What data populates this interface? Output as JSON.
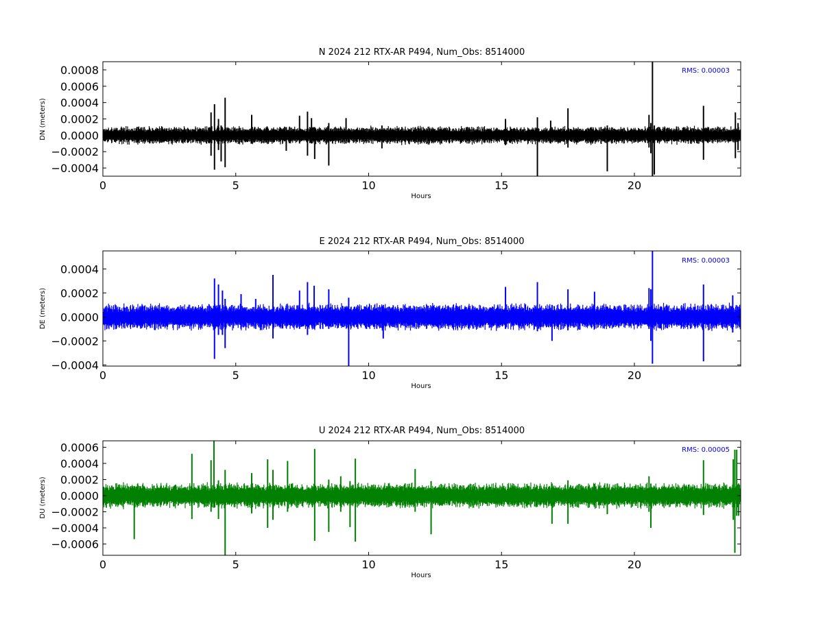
{
  "chart_data": [
    {
      "type": "line",
      "title": "N 2024 212 RTX-AR  P494, Num_Obs: 8514000",
      "xlabel": "Hours",
      "ylabel": "DN (meters)",
      "xlim": [
        0,
        24
      ],
      "ylim": [
        -0.0005,
        0.0009
      ],
      "xticks": [
        0,
        5,
        10,
        15,
        20
      ],
      "xtick_labels": [
        "0",
        "5",
        "10",
        "15",
        "20"
      ],
      "yticks": [
        -0.0004,
        -0.0002,
        0.0,
        0.0002,
        0.0004,
        0.0006,
        0.0008
      ],
      "ytick_labels": [
        "−0.0004",
        "−0.0002",
        "0.0000",
        "0.0002",
        "0.0004",
        "0.0006",
        "0.0008"
      ],
      "color": "#000000",
      "annotation": "RMS:  0.00003",
      "annotation_color": "#0000ff",
      "noise_band": [
        -0.00012,
        0.00012
      ],
      "spikes": [
        {
          "x": 4.07,
          "lo": -0.00025,
          "hi": 0.00028
        },
        {
          "x": 4.2,
          "lo": -0.00042,
          "hi": 0.00038
        },
        {
          "x": 4.35,
          "lo": -0.00018,
          "hi": 0.0002
        },
        {
          "x": 4.45,
          "lo": -0.00032,
          "hi": 0.00012
        },
        {
          "x": 4.6,
          "lo": -0.00039,
          "hi": 0.00046
        },
        {
          "x": 5.6,
          "lo": -0.0001,
          "hi": 0.00025
        },
        {
          "x": 6.9,
          "lo": -0.00019,
          "hi": 0.0001
        },
        {
          "x": 7.4,
          "lo": -0.0001,
          "hi": 0.00024
        },
        {
          "x": 7.7,
          "lo": -0.00025,
          "hi": 0.00029
        },
        {
          "x": 7.85,
          "lo": -0.0001,
          "hi": 0.00021
        },
        {
          "x": 7.97,
          "lo": -0.00029,
          "hi": 0.0001
        },
        {
          "x": 8.5,
          "lo": -0.00037,
          "hi": 0.00015
        },
        {
          "x": 9.15,
          "lo": -0.0001,
          "hi": 0.00021
        },
        {
          "x": 10.5,
          "lo": -0.00016,
          "hi": 0.00012
        },
        {
          "x": 15.15,
          "lo": -0.00012,
          "hi": 0.0002
        },
        {
          "x": 16.35,
          "lo": -0.0005,
          "hi": 0.00022
        },
        {
          "x": 16.85,
          "lo": -0.0001,
          "hi": 0.00018
        },
        {
          "x": 17.5,
          "lo": -0.00015,
          "hi": 0.00033
        },
        {
          "x": 18.98,
          "lo": -0.00044,
          "hi": 0.00012
        },
        {
          "x": 20.55,
          "lo": -0.00015,
          "hi": 0.00025
        },
        {
          "x": 20.62,
          "lo": -0.00022,
          "hi": 0.00015
        },
        {
          "x": 20.68,
          "lo": -0.0005,
          "hi": 0.0009
        },
        {
          "x": 20.75,
          "lo": -0.00048,
          "hi": 0.00012
        },
        {
          "x": 22.6,
          "lo": -0.0003,
          "hi": 0.00036
        },
        {
          "x": 23.8,
          "lo": -0.00028,
          "hi": 0.00028
        },
        {
          "x": 23.9,
          "lo": -0.00018,
          "hi": 0.00015
        }
      ]
    },
    {
      "type": "line",
      "title": "E 2024 212 RTX-AR  P494, Num_Obs: 8514000",
      "xlabel": "Hours",
      "ylabel": "DE (meters)",
      "xlim": [
        0,
        24
      ],
      "ylim": [
        -0.00041,
        0.00055
      ],
      "xticks": [
        0,
        5,
        10,
        15,
        20
      ],
      "xtick_labels": [
        "0",
        "5",
        "10",
        "15",
        "20"
      ],
      "yticks": [
        -0.0004,
        -0.0002,
        0.0,
        0.0002,
        0.0004
      ],
      "ytick_labels": [
        "−0.0004",
        "−0.0002",
        "0.0000",
        "0.0002",
        "0.0004"
      ],
      "color": "#0000ff",
      "annotation": "RMS:  0.00003",
      "annotation_color": "#0000ff",
      "noise_band": [
        -0.00012,
        0.00012
      ],
      "spikes": [
        {
          "x": 4.2,
          "lo": -0.00035,
          "hi": 0.00032
        },
        {
          "x": 4.35,
          "lo": -0.00015,
          "hi": 0.00027
        },
        {
          "x": 4.5,
          "lo": -0.00015,
          "hi": 0.00022
        },
        {
          "x": 4.6,
          "lo": -0.00026,
          "hi": 0.00015
        },
        {
          "x": 5.2,
          "lo": -0.0001,
          "hi": 0.00019
        },
        {
          "x": 5.75,
          "lo": -0.0001,
          "hi": 0.00015
        },
        {
          "x": 6.4,
          "lo": -0.00018,
          "hi": 0.00035
        },
        {
          "x": 7.4,
          "lo": -0.0001,
          "hi": 0.00022
        },
        {
          "x": 7.7,
          "lo": -0.00015,
          "hi": 0.00029
        },
        {
          "x": 7.95,
          "lo": -0.0001,
          "hi": 0.00026
        },
        {
          "x": 8.5,
          "lo": -0.0001,
          "hi": 0.00023
        },
        {
          "x": 9.25,
          "lo": -0.00041,
          "hi": 0.00016
        },
        {
          "x": 10.55,
          "lo": -0.00018,
          "hi": 0.0001
        },
        {
          "x": 15.15,
          "lo": -0.0001,
          "hi": 0.00025
        },
        {
          "x": 16.35,
          "lo": -0.00012,
          "hi": 0.00029
        },
        {
          "x": 16.9,
          "lo": -0.0002,
          "hi": 0.0001
        },
        {
          "x": 17.5,
          "lo": -0.00011,
          "hi": 0.00023
        },
        {
          "x": 18.5,
          "lo": -0.0001,
          "hi": 0.00021
        },
        {
          "x": 20.55,
          "lo": -0.0001,
          "hi": 0.00024
        },
        {
          "x": 20.62,
          "lo": -0.0002,
          "hi": 0.00023
        },
        {
          "x": 20.68,
          "lo": -0.00039,
          "hi": 0.00055
        },
        {
          "x": 22.6,
          "lo": -0.00037,
          "hi": 0.00027
        },
        {
          "x": 23.7,
          "lo": -0.00013,
          "hi": 0.00018
        }
      ]
    },
    {
      "type": "line",
      "title": "U 2024 212 RTX-AR  P494, Num_Obs: 8514000",
      "xlabel": "Hours",
      "ylabel": "DU (meters)",
      "xlim": [
        0,
        24
      ],
      "ylim": [
        -0.00074,
        0.00068
      ],
      "xticks": [
        0,
        5,
        10,
        15,
        20
      ],
      "xtick_labels": [
        "0",
        "5",
        "10",
        "15",
        "20"
      ],
      "yticks": [
        -0.0006,
        -0.0004,
        -0.0002,
        0.0,
        0.0002,
        0.0004,
        0.0006
      ],
      "ytick_labels": [
        "−0.0006",
        "−0.0004",
        "−0.0002",
        "0.0000",
        "0.0002",
        "0.0004",
        "0.0006"
      ],
      "color": "#008000",
      "annotation": "RMS:  0.00005",
      "annotation_color": "#0000ff",
      "noise_band": [
        -0.00017,
        0.00017
      ],
      "spikes": [
        {
          "x": 1.18,
          "lo": -0.00054,
          "hi": 0.00012
        },
        {
          "x": 3.35,
          "lo": -0.00029,
          "hi": 0.00052
        },
        {
          "x": 4.07,
          "lo": -0.0002,
          "hi": 0.00044
        },
        {
          "x": 4.18,
          "lo": -0.00015,
          "hi": 0.00068
        },
        {
          "x": 4.35,
          "lo": -0.00029,
          "hi": 0.00019
        },
        {
          "x": 4.6,
          "lo": -0.00074,
          "hi": 0.00032
        },
        {
          "x": 5.6,
          "lo": -0.00022,
          "hi": 0.00028
        },
        {
          "x": 6.2,
          "lo": -0.0004,
          "hi": 0.00045
        },
        {
          "x": 6.4,
          "lo": -0.0003,
          "hi": 0.00032
        },
        {
          "x": 6.95,
          "lo": -0.0002,
          "hi": 0.00043
        },
        {
          "x": 7.97,
          "lo": -0.00056,
          "hi": 0.00058
        },
        {
          "x": 8.5,
          "lo": -0.00045,
          "hi": 0.0002
        },
        {
          "x": 8.95,
          "lo": -0.0002,
          "hi": 0.00024
        },
        {
          "x": 9.3,
          "lo": -0.00039,
          "hi": 0.00018
        },
        {
          "x": 9.5,
          "lo": -0.00057,
          "hi": 0.00046
        },
        {
          "x": 11.75,
          "lo": -0.0002,
          "hi": 0.00033
        },
        {
          "x": 12.35,
          "lo": -0.00048,
          "hi": 0.00018
        },
        {
          "x": 16.9,
          "lo": -0.00035,
          "hi": 0.00015
        },
        {
          "x": 17.5,
          "lo": -0.00035,
          "hi": 0.00019
        },
        {
          "x": 18.98,
          "lo": -0.00023,
          "hi": 0.00015
        },
        {
          "x": 20.55,
          "lo": -0.0002,
          "hi": 0.00024
        },
        {
          "x": 20.62,
          "lo": -0.0004,
          "hi": 0.00015
        },
        {
          "x": 22.6,
          "lo": -0.00024,
          "hi": 0.00044
        },
        {
          "x": 23.72,
          "lo": -0.0003,
          "hi": 0.00045
        },
        {
          "x": 23.78,
          "lo": -0.00071,
          "hi": 0.00057
        },
        {
          "x": 23.85,
          "lo": -0.00025,
          "hi": 0.00057
        },
        {
          "x": 23.92,
          "lo": -0.00025,
          "hi": 0.00015
        }
      ]
    }
  ]
}
